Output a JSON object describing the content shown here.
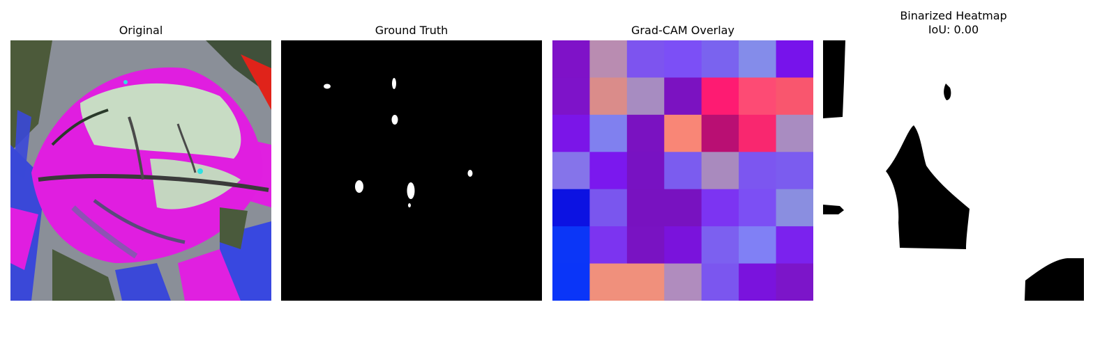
{
  "panels": [
    {
      "id": "original",
      "title": "Original"
    },
    {
      "id": "ground-truth",
      "title": "Ground Truth"
    },
    {
      "id": "gradcam",
      "title": "Grad-CAM Overlay"
    },
    {
      "id": "binarized",
      "title": "Binarized Heatmap",
      "subtitle": "IoU: 0.00"
    }
  ],
  "gradcam_grid": [
    [
      "#7f12c8",
      "#b98cb1",
      "#7d54ef",
      "#7c4ff6",
      "#7a63ef",
      "#848cea",
      "#7713eb"
    ],
    [
      "#7e13c9",
      "#da8c8a",
      "#a78cc1",
      "#7b12c1",
      "#fe1b72",
      "#fd4b74",
      "#f9566e"
    ],
    [
      "#7b15e8",
      "#8080ef",
      "#7a12c1",
      "#f98676",
      "#b90f73",
      "#f9276f",
      "#a98cc1"
    ],
    [
      "#8574ea",
      "#7b18ee",
      "#7812c2",
      "#7b5cef",
      "#a98abe",
      "#7c56f0",
      "#7b5cef"
    ],
    [
      "#0c12e2",
      "#7a56ee",
      "#7812c0",
      "#7812c0",
      "#7c34f2",
      "#7c4ff4",
      "#8a8ee0"
    ],
    [
      "#0b36f7",
      "#7c34f0",
      "#7913c2",
      "#7a13dc",
      "#7c60f0",
      "#8080f5",
      "#7b22ee"
    ],
    [
      "#0a35f8",
      "#f0907c",
      "#f0907c",
      "#b08cbe",
      "#7b56ef",
      "#7a13dd",
      "#7c15c9"
    ]
  ],
  "colors": {
    "background": "#ffffff",
    "mask": "#000000",
    "foreground": "#ffffff"
  }
}
